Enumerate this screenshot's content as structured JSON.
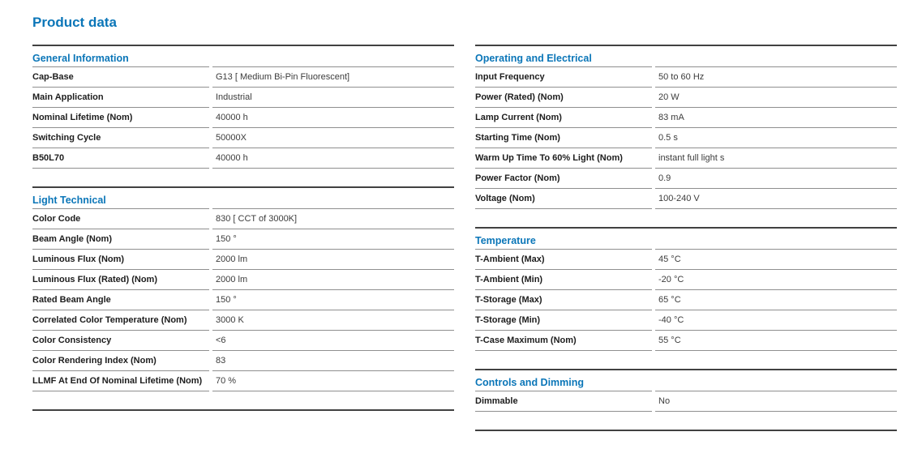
{
  "page": {
    "title": "Product data"
  },
  "colors": {
    "accent_blue": "#0b76b8",
    "thick_rule": "#414141",
    "thin_rule": "#8f8f8f",
    "label_text": "#1d1d1d",
    "value_text": "#3c3c3c",
    "background": "#ffffff"
  },
  "columns": [
    {
      "sections": [
        {
          "title": "General Information",
          "rows": [
            {
              "label": "Cap-Base",
              "value": "G13 [ Medium Bi-Pin Fluorescent]"
            },
            {
              "label": "Main Application",
              "value": "Industrial"
            },
            {
              "label": "Nominal Lifetime (Nom)",
              "value": "40000 h"
            },
            {
              "label": "Switching Cycle",
              "value": "50000X"
            },
            {
              "label": "B50L70",
              "value": "40000 h"
            }
          ]
        },
        {
          "title": "Light Technical",
          "rows": [
            {
              "label": "Color Code",
              "value": "830 [ CCT of 3000K]"
            },
            {
              "label": "Beam Angle (Nom)",
              "value": "150 °"
            },
            {
              "label": "Luminous Flux (Nom)",
              "value": "2000 lm"
            },
            {
              "label": "Luminous Flux (Rated) (Nom)",
              "value": "2000 lm"
            },
            {
              "label": "Rated Beam Angle",
              "value": "150 °"
            },
            {
              "label": "Correlated Color Temperature (Nom)",
              "value": "3000 K"
            },
            {
              "label": "Color Consistency",
              "value": "<6"
            },
            {
              "label": "Color Rendering Index (Nom)",
              "value": "83"
            },
            {
              "label": "LLMF At End Of Nominal Lifetime (Nom)",
              "value": "70 %"
            }
          ]
        }
      ]
    },
    {
      "sections": [
        {
          "title": "Operating and Electrical",
          "rows": [
            {
              "label": "Input Frequency",
              "value": "50 to 60 Hz"
            },
            {
              "label": "Power (Rated) (Nom)",
              "value": "20 W"
            },
            {
              "label": "Lamp Current (Nom)",
              "value": "83 mA"
            },
            {
              "label": "Starting Time (Nom)",
              "value": "0.5 s"
            },
            {
              "label": "Warm Up Time To 60% Light (Nom)",
              "value": "instant full light s"
            },
            {
              "label": "Power Factor (Nom)",
              "value": "0.9"
            },
            {
              "label": "Voltage (Nom)",
              "value": "100-240 V"
            }
          ]
        },
        {
          "title": "Temperature",
          "rows": [
            {
              "label": "T-Ambient (Max)",
              "value": "45 °C"
            },
            {
              "label": "T-Ambient (Min)",
              "value": "-20 °C"
            },
            {
              "label": "T-Storage (Max)",
              "value": "65 °C"
            },
            {
              "label": "T-Storage (Min)",
              "value": "-40 °C"
            },
            {
              "label": "T-Case Maximum (Nom)",
              "value": "55 °C"
            }
          ]
        },
        {
          "title": "Controls and Dimming",
          "rows": [
            {
              "label": "Dimmable",
              "value": "No"
            }
          ]
        }
      ]
    }
  ]
}
